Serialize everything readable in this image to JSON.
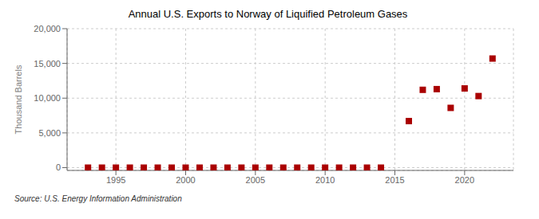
{
  "chart_data": {
    "type": "scatter",
    "title": "Annual U.S. Exports to Norway of Liquified Petroleum Gases",
    "ylabel": "Thousand Barrels",
    "source": "Source: U.S. Energy Information Administration",
    "color": "#aa0000",
    "marker": "square",
    "grid": true,
    "x": [
      1993,
      1994,
      1995,
      1996,
      1997,
      1998,
      1999,
      2000,
      2001,
      2002,
      2003,
      2004,
      2005,
      2006,
      2007,
      2008,
      2009,
      2010,
      2011,
      2012,
      2013,
      2014,
      2016,
      2017,
      2018,
      2019,
      2020,
      2021,
      2022
    ],
    "values": [
      0,
      0,
      0,
      0,
      0,
      0,
      0,
      0,
      0,
      0,
      0,
      0,
      0,
      0,
      0,
      0,
      0,
      0,
      0,
      0,
      0,
      0,
      6700,
      11200,
      11300,
      8600,
      11400,
      10300,
      15700
    ],
    "xlim": [
      1991.5,
      2023.5
    ],
    "ylim": [
      -400,
      20000
    ],
    "xticks": [
      1995,
      2000,
      2005,
      2010,
      2015,
      2020
    ],
    "yticks": [
      0,
      {
        "value": 5000,
        "label": "5,000"
      },
      {
        "value": 10000,
        "label": "10,000"
      },
      {
        "value": 15000,
        "label": "15,000"
      },
      {
        "value": 20000,
        "label": "20,000"
      }
    ]
  }
}
